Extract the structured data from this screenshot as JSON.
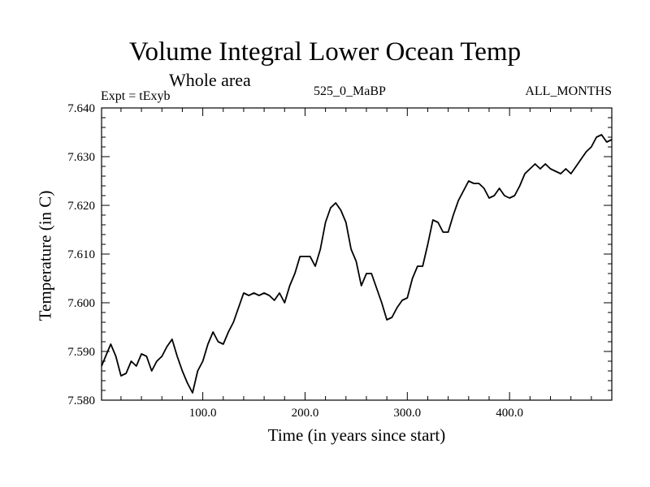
{
  "chart_data": {
    "type": "line",
    "title": "Volume Integral Lower Ocean Temp",
    "subtitle": "Whole area",
    "left_label": "Expt = tExyb",
    "center_label": "525_0_MaBP",
    "right_label": "ALL_MONTHS",
    "xlabel": "Time (in years since start)",
    "ylabel": "Temperature (in C)",
    "xlim": [
      1,
      500
    ],
    "ylim": [
      7.58,
      7.64
    ],
    "x_ticks": [
      "100.0",
      "200.0",
      "300.0",
      "400.0"
    ],
    "y_ticks": [
      "7.580",
      "7.590",
      "7.600",
      "7.610",
      "7.620",
      "7.630",
      "7.640"
    ],
    "grid": false,
    "series": [
      {
        "color": "#000000",
        "x": [
          1,
          5,
          10,
          15,
          20,
          25,
          30,
          35,
          40,
          45,
          50,
          55,
          60,
          65,
          70,
          75,
          80,
          85,
          90,
          95,
          100,
          105,
          110,
          115,
          120,
          125,
          130,
          135,
          140,
          145,
          150,
          155,
          160,
          165,
          170,
          175,
          180,
          185,
          190,
          195,
          200,
          205,
          210,
          215,
          220,
          225,
          230,
          235,
          240,
          245,
          250,
          255,
          260,
          265,
          270,
          275,
          280,
          285,
          290,
          295,
          300,
          305,
          310,
          315,
          320,
          325,
          330,
          335,
          340,
          345,
          350,
          355,
          360,
          365,
          370,
          375,
          380,
          385,
          390,
          395,
          400,
          405,
          410,
          415,
          420,
          425,
          430,
          435,
          440,
          445,
          450,
          455,
          460,
          465,
          470,
          475,
          480,
          485,
          490,
          495,
          500
        ],
        "y": [
          7.587,
          7.589,
          7.5915,
          7.589,
          7.585,
          7.5855,
          7.588,
          7.587,
          7.5895,
          7.589,
          7.586,
          7.588,
          7.589,
          7.591,
          7.5925,
          7.589,
          7.586,
          7.5835,
          7.5815,
          7.586,
          7.588,
          7.5915,
          7.594,
          7.592,
          7.5915,
          7.594,
          7.596,
          7.599,
          7.602,
          7.6015,
          7.602,
          7.6015,
          7.602,
          7.6015,
          7.6005,
          7.602,
          7.6,
          7.6035,
          7.606,
          7.6095,
          7.6095,
          7.6095,
          7.6075,
          7.611,
          7.6165,
          7.6195,
          7.6205,
          7.619,
          7.6165,
          7.611,
          7.6085,
          7.6035,
          7.606,
          7.606,
          7.603,
          7.6,
          7.5965,
          7.597,
          7.599,
          7.6005,
          7.601,
          7.605,
          7.6075,
          7.6075,
          7.612,
          7.617,
          7.6165,
          7.6145,
          7.6145,
          7.618,
          7.621,
          7.623,
          7.625,
          7.6245,
          7.6245,
          7.6235,
          7.6215,
          7.622,
          7.6235,
          7.622,
          7.6215,
          7.622,
          7.624,
          7.6265,
          7.6275,
          7.6285,
          7.6275,
          7.6285,
          7.6275,
          7.627,
          7.6265,
          7.6275,
          7.6265,
          7.628,
          7.6295,
          7.631,
          7.632,
          7.634,
          7.6345,
          7.633,
          7.6335
        ]
      }
    ]
  }
}
